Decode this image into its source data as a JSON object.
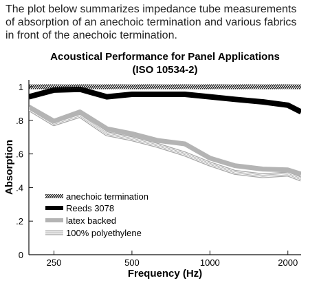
{
  "intro": {
    "line1": "The plot below summarizes impedance tube measurements",
    "line2": "of absorption of an anechoic termination and various fabrics",
    "line3": "in front of the anechoic termination."
  },
  "chart_data": {
    "type": "line",
    "title": "Acoustical Performance for Panel Applications",
    "subtitle": "(ISO 10534-2)",
    "xlabel": "Frequency (Hz)",
    "ylabel": "Absorption",
    "xscale": "log",
    "xlim": [
      200,
      2250
    ],
    "ylim": [
      0,
      1.02
    ],
    "xticks": [
      250,
      500,
      1000,
      2000
    ],
    "xtick_labels": [
      "250",
      "500",
      "1000",
      "2000"
    ],
    "yticks": [
      0,
      0.2,
      0.4,
      0.6,
      0.8,
      1.0
    ],
    "ytick_labels": [
      "0",
      ".2",
      ".4",
      ".6",
      ".8",
      "1"
    ],
    "x": [
      200,
      250,
      315,
      400,
      500,
      630,
      800,
      1000,
      1250,
      1600,
      2000,
      2250
    ],
    "series": [
      {
        "name": "anechoic termination",
        "style": "hatched",
        "values": [
          1.0,
          1.0,
          1.0,
          1.0,
          1.0,
          1.0,
          1.0,
          1.0,
          1.0,
          1.0,
          1.0,
          1.0
        ]
      },
      {
        "name": "Reeds 3078",
        "style": "thick-black",
        "values": [
          0.94,
          0.98,
          0.985,
          0.94,
          0.955,
          0.955,
          0.955,
          0.94,
          0.925,
          0.91,
          0.89,
          0.85
        ]
      },
      {
        "name": "latex backed",
        "style": "thick-gray",
        "values": [
          0.88,
          0.795,
          0.85,
          0.75,
          0.72,
          0.68,
          0.66,
          0.575,
          0.53,
          0.51,
          0.505,
          0.48
        ]
      },
      {
        "name": "100% polyethylene",
        "style": "triple-line",
        "values": [
          0.87,
          0.78,
          0.83,
          0.72,
          0.69,
          0.65,
          0.6,
          0.54,
          0.49,
          0.47,
          0.48,
          0.45
        ]
      }
    ],
    "legend_position": "lower-left",
    "grid": false
  }
}
